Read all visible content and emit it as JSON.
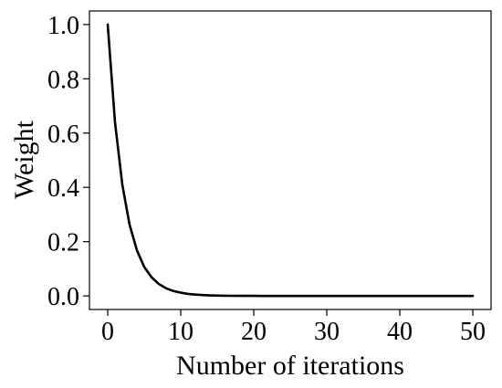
{
  "chart_data": {
    "type": "line",
    "title": "",
    "xlabel": "Number of iterations",
    "ylabel": "Weight",
    "xlim": [
      -2.5,
      52.5
    ],
    "ylim": [
      -0.05,
      1.05
    ],
    "xticks": [
      0,
      10,
      20,
      30,
      40,
      50
    ],
    "yticks": [
      0.0,
      0.2,
      0.4,
      0.6,
      0.8,
      1.0
    ],
    "xtick_labels": [
      "0",
      "10",
      "20",
      "30",
      "40",
      "50"
    ],
    "ytick_labels": [
      "0.0",
      "0.2",
      "0.4",
      "0.6",
      "0.8",
      "1.0"
    ],
    "grid": false,
    "legend": "none",
    "line_color": "#000000",
    "series": [
      {
        "x": [
          0,
          1,
          2,
          3,
          4,
          5,
          6,
          7,
          8,
          9,
          10,
          11,
          12,
          13,
          14,
          15,
          16,
          17,
          18,
          19,
          20,
          21,
          22,
          23,
          24,
          25,
          26,
          27,
          28,
          29,
          30,
          31,
          32,
          33,
          34,
          35,
          36,
          37,
          38,
          39,
          40,
          41,
          42,
          43,
          44,
          45,
          46,
          47,
          48,
          49,
          50
        ],
        "values": [
          1.0,
          0.64,
          0.41,
          0.262,
          0.168,
          0.107,
          0.069,
          0.044,
          0.028,
          0.018,
          0.012,
          0.0075,
          0.0048,
          0.0031,
          0.002,
          0.0013,
          0.0008,
          0.0005,
          0.0003,
          0.0002,
          0.0001,
          0,
          0,
          0,
          0,
          0,
          0,
          0,
          0,
          0,
          0,
          0,
          0,
          0,
          0,
          0,
          0,
          0,
          0,
          0,
          0,
          0,
          0,
          0,
          0,
          0,
          0,
          0,
          0,
          0,
          0
        ]
      }
    ]
  }
}
